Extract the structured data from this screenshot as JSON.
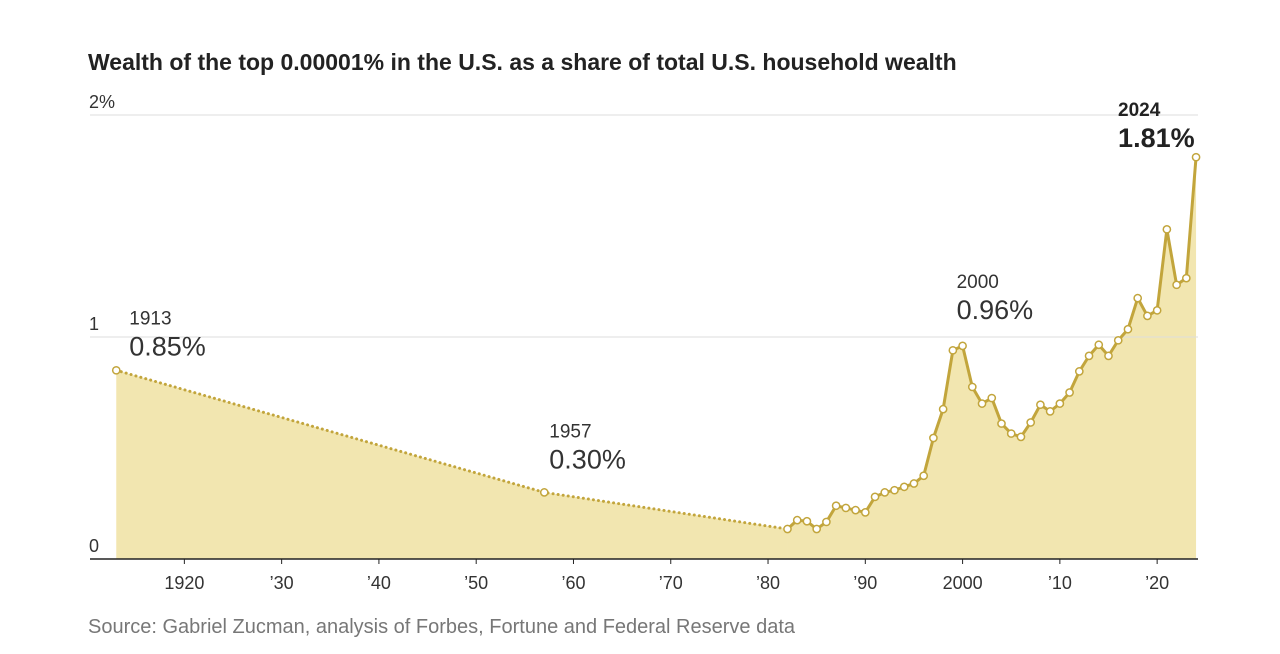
{
  "chart_data": {
    "type": "line",
    "title": "Wealth of the top 0.00001% in the U.S. as a share of total U.S. household wealth",
    "source": "Source: Gabriel Zucman, analysis of Forbes, Fortune and Federal Reserve data",
    "xlim": [
      1910.3,
      2024.2
    ],
    "ylim": [
      0,
      2
    ],
    "yticks": [
      0,
      1,
      {
        "value": 2,
        "label": "2%"
      }
    ],
    "xticks": [
      {
        "value": 1920,
        "label": "1920"
      },
      {
        "value": 1930,
        "label": "’30"
      },
      {
        "value": 1940,
        "label": "’40"
      },
      {
        "value": 1950,
        "label": "’50"
      },
      {
        "value": 1960,
        "label": "’60"
      },
      {
        "value": 1970,
        "label": "’70"
      },
      {
        "value": 1980,
        "label": "’80"
      },
      {
        "value": 1990,
        "label": "’90"
      },
      {
        "value": 2000,
        "label": "2000"
      },
      {
        "value": 2010,
        "label": "’10"
      },
      {
        "value": 2020,
        "label": "’20"
      }
    ],
    "grid": true,
    "line_color": "#c2a53c",
    "fill_color": "#f2e6b0",
    "series": [
      {
        "line_style": "dotted",
        "x": [
          1913,
          1957,
          1982
        ],
        "values": [
          0.85,
          0.3,
          0.135
        ]
      },
      {
        "line_style": "solid",
        "x": [
          1982,
          1983,
          1984,
          1985,
          1986,
          1987,
          1988,
          1989,
          1990,
          1991,
          1992,
          1993,
          1994,
          1995,
          1996,
          1997,
          1998,
          1999,
          2000,
          2001,
          2002,
          2003,
          2004,
          2005,
          2006,
          2007,
          2008,
          2009,
          2010,
          2011,
          2012,
          2013,
          2014,
          2015,
          2016,
          2017,
          2018,
          2019,
          2020,
          2021,
          2022,
          2023,
          2024
        ],
        "values": [
          0.135,
          0.175,
          0.17,
          0.135,
          0.167,
          0.24,
          0.23,
          0.22,
          0.21,
          0.28,
          0.3,
          0.31,
          0.325,
          0.34,
          0.375,
          0.545,
          0.675,
          0.94,
          0.96,
          0.775,
          0.7,
          0.725,
          0.61,
          0.565,
          0.55,
          0.615,
          0.695,
          0.665,
          0.7,
          0.75,
          0.845,
          0.915,
          0.965,
          0.915,
          0.985,
          1.035,
          1.175,
          1.095,
          1.12,
          1.485,
          1.235,
          1.265,
          1.81
        ]
      }
    ],
    "annotations": [
      {
        "year": "1913",
        "value": "0.85%"
      },
      {
        "year": "1957",
        "value": "0.30%"
      },
      {
        "year": "2000",
        "value": "0.96%"
      },
      {
        "year": "2024",
        "value": "1.81%",
        "bold": true
      }
    ]
  }
}
